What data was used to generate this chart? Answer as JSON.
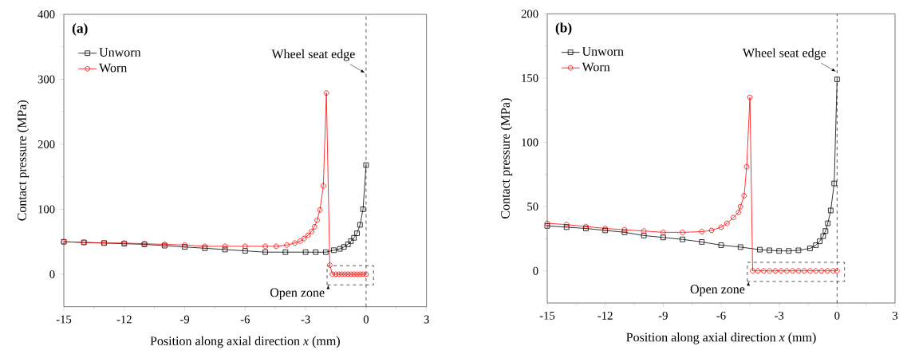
{
  "chart_data": [
    {
      "type": "line",
      "title": "(a)",
      "xlabel": "Position along axial direction *x* (mm)",
      "ylabel": "Contact pressure (MPa)",
      "xlim": [
        -15,
        3
      ],
      "ylim": [
        -50,
        400
      ],
      "xticks": [
        -15,
        -12,
        -9,
        -6,
        -3,
        0,
        3
      ],
      "yticks": [
        0,
        100,
        200,
        300,
        400
      ],
      "legend": "top left",
      "series": [
        {
          "name": "Unworn",
          "color": "#000000",
          "marker": "square",
          "x": [
            -15,
            -14,
            -13,
            -12,
            -11,
            -10,
            -9,
            -8,
            -7,
            -6,
            -5,
            -4,
            -3,
            -2.5,
            -2,
            -1.6,
            -1.3,
            -1.1,
            -0.9,
            -0.75,
            -0.6,
            -0.45,
            -0.3,
            -0.15,
            0
          ],
          "values": [
            50,
            49,
            48,
            47,
            46,
            44,
            42,
            40,
            38,
            36,
            34,
            34,
            34,
            34,
            34,
            37,
            39,
            42,
            46,
            51,
            56,
            63,
            76,
            100,
            168
          ]
        },
        {
          "name": "Worn",
          "color": "#ff0000",
          "marker": "circle",
          "x": [
            -15,
            -14,
            -13,
            -12,
            -11,
            -10,
            -9,
            -8,
            -7,
            -6,
            -5,
            -4.46,
            -3.93,
            -3.54,
            -3.27,
            -3.08,
            -2.88,
            -2.7,
            -2.56,
            -2.43,
            -2.29,
            -2.12,
            -1.97,
            -1.8,
            -1.67,
            -1.5,
            -1.35,
            -1.2,
            -1.05,
            -0.9,
            -0.75,
            -0.6,
            -0.45,
            -0.3,
            -0.15,
            0
          ],
          "values": [
            50,
            49,
            48,
            48,
            47,
            46,
            45,
            43,
            43,
            43,
            43,
            43,
            45,
            48,
            51,
            55,
            60,
            66,
            73,
            83,
            99,
            136,
            279,
            14,
            0,
            0,
            0,
            0,
            0,
            0,
            0,
            0,
            0,
            0,
            0,
            0
          ]
        }
      ],
      "ref_lines": [
        {
          "axis": "x",
          "value": 0,
          "label": "Wheel seat edge",
          "line_style": "dashed"
        }
      ],
      "annotations": [
        {
          "text": "Open zone",
          "x": -1.67,
          "y": 0
        }
      ]
    },
    {
      "type": "line",
      "title": "(b)",
      "xlabel": "Position along axial direction *x* (mm)",
      "ylabel": "Contact pressure (MPa)",
      "xlim": [
        -15,
        3
      ],
      "ylim": [
        -25,
        200
      ],
      "xticks": [
        -15,
        -12,
        -9,
        -6,
        -3,
        0,
        3
      ],
      "yticks": [
        0,
        50,
        100,
        150,
        200
      ],
      "legend": "top left",
      "series": [
        {
          "name": "Unworn",
          "color": "#000000",
          "marker": "square",
          "x": [
            -15,
            -14,
            -13,
            -12,
            -11,
            -10,
            -9,
            -8,
            -7,
            -6,
            -5,
            -4,
            -3.5,
            -3,
            -2.5,
            -2,
            -1.4,
            -1.1,
            -0.9,
            -0.72,
            -0.6,
            -0.48,
            -0.33,
            -0.15,
            0
          ],
          "values": [
            35,
            34,
            33,
            31.5,
            30,
            27.5,
            26,
            24.5,
            22.5,
            20,
            18.5,
            16.5,
            16,
            15.5,
            15.5,
            16,
            17.5,
            20,
            23,
            27,
            31,
            37,
            47,
            68,
            149
          ]
        },
        {
          "name": "Worn",
          "color": "#ff0000",
          "marker": "circle",
          "x": [
            -15,
            -14,
            -13,
            -12,
            -11,
            -10,
            -9,
            -8,
            -7,
            -6.5,
            -6,
            -5.7,
            -5.37,
            -5.1,
            -5,
            -4.81,
            -4.68,
            -4.51,
            -4.37,
            -4.1,
            -3.8,
            -3.5,
            -3.2,
            -2.9,
            -2.6,
            -2.3,
            -2,
            -1.7,
            -1.4,
            -1.1,
            -0.8,
            -0.5,
            -0.2,
            0
          ],
          "values": [
            37,
            36,
            34.5,
            33,
            32,
            31,
            30,
            30,
            30.5,
            31.5,
            34,
            37,
            41.5,
            45.5,
            50,
            58.5,
            81,
            135,
            0,
            0,
            0,
            0,
            0,
            0,
            0,
            0,
            0,
            0,
            0,
            0,
            0,
            0,
            0,
            0
          ]
        }
      ],
      "ref_lines": [
        {
          "axis": "x",
          "value": 0,
          "label": "Wheel seat edge",
          "line_style": "dashed"
        }
      ],
      "annotations": [
        {
          "text": "Open zone",
          "x": -4.37,
          "y": 0
        }
      ]
    }
  ]
}
